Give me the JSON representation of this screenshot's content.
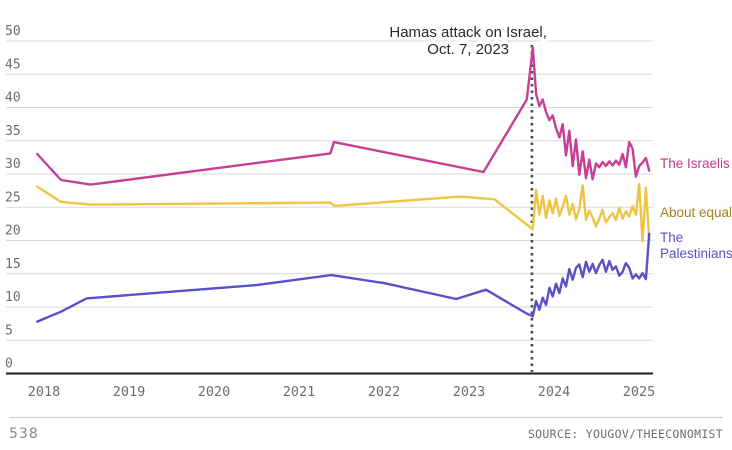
{
  "chart_data": {
    "type": "line",
    "title": "",
    "xlabel": "",
    "ylabel": "",
    "x_ticks": [
      2018,
      2019,
      2020,
      2021,
      2022,
      2023,
      2024,
      2025
    ],
    "y_ticks": [
      0,
      5,
      10,
      15,
      20,
      25,
      30,
      35,
      40,
      45,
      50
    ],
    "xlim": [
      2017.9,
      2025.25
    ],
    "ylim": [
      0,
      50
    ],
    "grid": true,
    "legend_position": "right-of-line-ends",
    "annotation": {
      "lines": [
        "Hamas attack on Israel,",
        "Oct. 7, 2023"
      ],
      "x_year": 2022.99
    },
    "event_line_x": 2023.74,
    "colors": {
      "grid": "#d9d9d9",
      "axis": "#1d1d1d",
      "event_line": "#4a4a4a",
      "tick_text": "#6e6e6e",
      "annotation_text": "#2a2a2a"
    },
    "series": [
      {
        "name": "The Israelis",
        "color": "#c73e96",
        "label_color": "#bb3a8c",
        "label_lines": [
          "The Israelis"
        ],
        "label_anchor_value": 31.5,
        "pre": [
          [
            2017.92,
            33.0
          ],
          [
            2018.2,
            29.1
          ],
          [
            2018.55,
            28.4
          ],
          [
            2021.37,
            33.1
          ],
          [
            2021.41,
            34.8
          ],
          [
            2023.17,
            30.3
          ],
          [
            2023.68,
            41.2
          ]
        ],
        "post_range": [
          2023.75,
          2025.12
        ],
        "post_values": [
          49.0,
          42.0,
          40.2,
          41.2,
          39.3,
          38.1,
          38.8,
          36.9,
          35.5,
          37.5,
          32.8,
          36.5,
          31.2,
          35.2,
          29.9,
          33.4,
          29.4,
          32.2,
          29.2,
          31.6,
          31.0,
          31.8,
          31.2,
          31.9,
          31.3,
          32.0,
          31.4,
          33.0,
          31.0,
          34.8,
          33.8,
          29.6,
          31.2,
          31.7,
          32.4,
          30.5
        ]
      },
      {
        "name": "About equal",
        "color": "#f0c443",
        "label_color": "#a0801f",
        "label_lines": [
          "About equal"
        ],
        "label_anchor_value": 24.1,
        "pre": [
          [
            2017.92,
            28.1
          ],
          [
            2018.2,
            25.8
          ],
          [
            2018.55,
            25.4
          ],
          [
            2021.37,
            25.7
          ],
          [
            2021.42,
            25.2
          ],
          [
            2022.9,
            26.6
          ],
          [
            2023.3,
            26.2
          ]
        ],
        "post_range": [
          2023.75,
          2025.12
        ],
        "post_values": [
          21.7,
          27.6,
          23.9,
          26.7,
          23.4,
          26.0,
          24.1,
          26.3,
          23.7,
          25.1,
          26.7,
          23.9,
          25.5,
          23.2,
          24.7,
          28.3,
          23.1,
          24.5,
          23.5,
          22.1,
          23.3,
          24.6,
          22.7,
          23.5,
          24.1,
          23.1,
          24.9,
          23.3,
          24.4,
          23.6,
          25.2,
          23.9,
          28.5,
          19.9,
          27.9,
          20.3
        ]
      },
      {
        "name": "The Palestinians",
        "color": "#5a50c8",
        "label_color": "#5a50c8",
        "label_lines": [
          "The",
          "Palestinians"
        ],
        "label_anchor_value": 19.2,
        "pre": [
          [
            2017.92,
            7.8
          ],
          [
            2018.2,
            9.3
          ],
          [
            2018.5,
            11.3
          ],
          [
            2019.5,
            12.3
          ],
          [
            2020.5,
            13.3
          ],
          [
            2021.38,
            14.8
          ],
          [
            2022.0,
            13.6
          ],
          [
            2022.85,
            11.2
          ],
          [
            2023.2,
            12.6
          ],
          [
            2023.68,
            9.0
          ]
        ],
        "post_range": [
          2023.75,
          2025.12
        ],
        "post_values": [
          8.6,
          10.9,
          9.6,
          11.4,
          10.3,
          12.9,
          11.6,
          13.5,
          12.1,
          14.3,
          13.1,
          15.7,
          14.1,
          15.9,
          16.4,
          14.5,
          16.8,
          15.3,
          16.5,
          15.1,
          16.3,
          17.1,
          15.3,
          16.9,
          15.6,
          16.1,
          14.7,
          15.3,
          16.6,
          15.9,
          14.3,
          14.9,
          14.3,
          15.1,
          14.2,
          21.0
        ]
      }
    ]
  },
  "footer": {
    "brand": "538",
    "source": "SOURCE: YOUGOV/THEECONOMIST"
  }
}
